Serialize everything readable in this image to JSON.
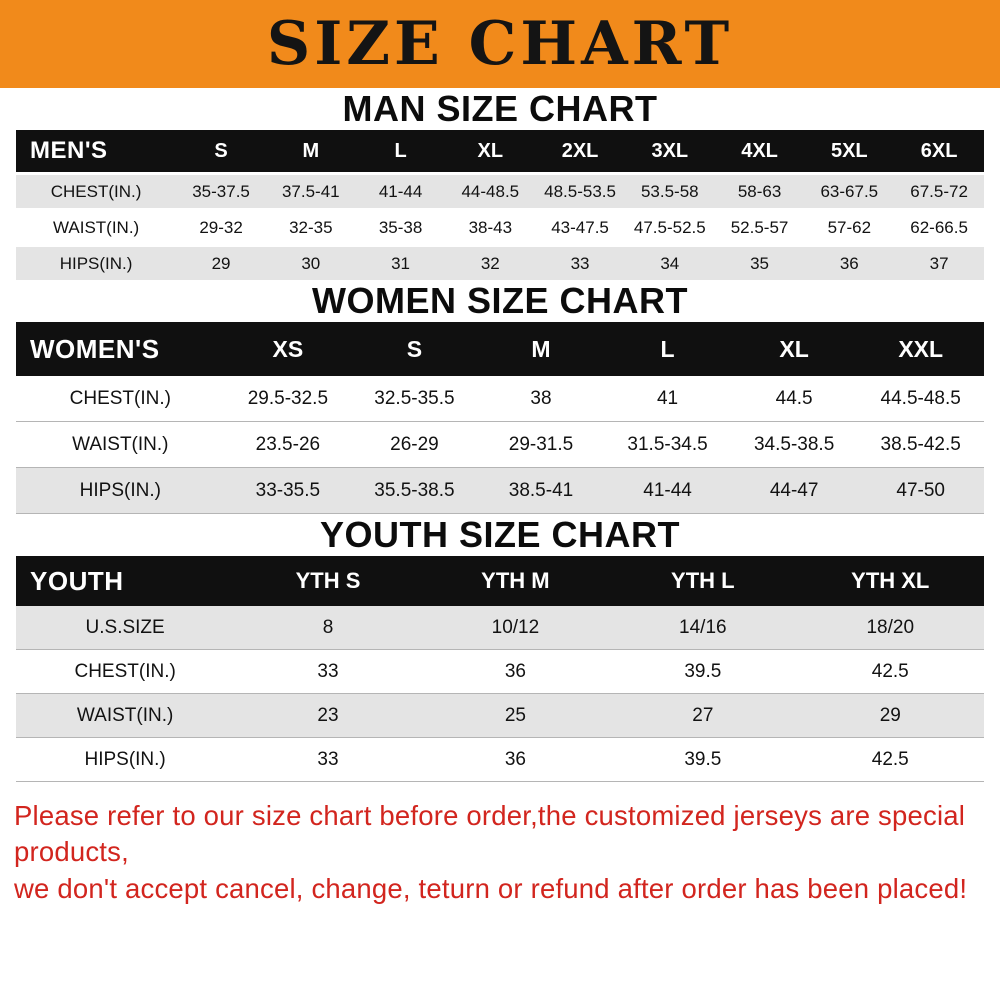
{
  "banner": {
    "title": "SIZE CHART"
  },
  "colors": {
    "banner_bg": "#F18A1B",
    "header_row_bg": "#101010",
    "stripe_bg": "#E4E4E4",
    "footer_text": "#D2251E"
  },
  "sections": {
    "men": {
      "heading": "MAN SIZE CHART",
      "table": {
        "header": [
          "MEN'S",
          "S",
          "M",
          "L",
          "XL",
          "2XL",
          "3XL",
          "4XL",
          "5XL",
          "6XL"
        ],
        "rows": [
          [
            "CHEST(IN.)",
            "35-37.5",
            "37.5-41",
            "41-44",
            "44-48.5",
            "48.5-53.5",
            "53.5-58",
            "58-63",
            "63-67.5",
            "67.5-72"
          ],
          [
            "WAIST(IN.)",
            "29-32",
            "32-35",
            "35-38",
            "38-43",
            "43-47.5",
            "47.5-52.5",
            "52.5-57",
            "57-62",
            "62-66.5"
          ],
          [
            "HIPS(IN.)",
            "29",
            "30",
            "31",
            "32",
            "33",
            "34",
            "35",
            "36",
            "37"
          ]
        ]
      }
    },
    "women": {
      "heading": "WOMEN SIZE CHART",
      "table": {
        "header": [
          "WOMEN'S",
          "XS",
          "S",
          "M",
          "L",
          "XL",
          "XXL"
        ],
        "rows": [
          [
            "CHEST(IN.)",
            "29.5-32.5",
            "32.5-35.5",
            "38",
            "41",
            "44.5",
            "44.5-48.5"
          ],
          [
            "WAIST(IN.)",
            "23.5-26",
            "26-29",
            "29-31.5",
            "31.5-34.5",
            "34.5-38.5",
            "38.5-42.5"
          ],
          [
            "HIPS(IN.)",
            "33-35.5",
            "35.5-38.5",
            "38.5-41",
            "41-44",
            "44-47",
            "47-50"
          ]
        ]
      }
    },
    "youth": {
      "heading": "YOUTH SIZE CHART",
      "table": {
        "header": [
          "YOUTH",
          "YTH S",
          "YTH M",
          "YTH L",
          "YTH XL"
        ],
        "rows": [
          [
            "U.S.SIZE",
            "8",
            "10/12",
            "14/16",
            "18/20"
          ],
          [
            "CHEST(IN.)",
            "33",
            "36",
            "39.5",
            "42.5"
          ],
          [
            "WAIST(IN.)",
            "23",
            "25",
            "27",
            "29"
          ],
          [
            "HIPS(IN.)",
            "33",
            "36",
            "39.5",
            "42.5"
          ]
        ]
      }
    }
  },
  "footer": {
    "line1": "Please refer to our size chart before order,the customized jerseys are special products,",
    "line2": "we don't accept cancel, change, teturn or refund after order has been placed!"
  }
}
